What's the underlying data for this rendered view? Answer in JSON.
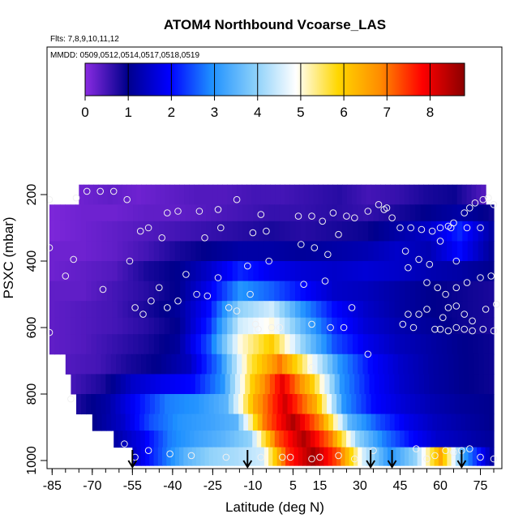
{
  "chart_data": {
    "type": "heatmap",
    "title": "ATOM4 Northbound Vcoarse_LAS",
    "flights_note": "Flts: 7,8,9,10,11,12",
    "dates_note": "MMDD: 0509,0512,0514,0517,0518,0519",
    "xlabel": "Latitude (deg N)",
    "ylabel": "PSXC (mbar)",
    "xlim": [
      -88,
      83
    ],
    "ylim": [
      1020,
      90
    ],
    "x_ticks": [
      -85,
      -70,
      -55,
      -40,
      -25,
      -10,
      5,
      15,
      30,
      45,
      60,
      75
    ],
    "y_ticks": [
      200,
      400,
      600,
      800,
      1000
    ],
    "colorbar": {
      "min": 0,
      "max": 8.8,
      "ticks": [
        0,
        1,
        2,
        3,
        4,
        5,
        6,
        7,
        8
      ],
      "colors": [
        "#8a2be2",
        "#00008b",
        "#0000ff",
        "#1e90ff",
        "#87cefa",
        "#ffffff",
        "#ffd700",
        "#ff8c00",
        "#ff0000",
        "#8b0000"
      ]
    },
    "pressure_bands": [
      {
        "p_top": 170,
        "p_bot": 230,
        "x_start": -75,
        "x_end": 77,
        "values": [
          0.2,
          0.3,
          0.2,
          0.3,
          0.4,
          0.4,
          0.5,
          0.5,
          0.6,
          0.7,
          0.5,
          0.6,
          0.8,
          0.9,
          0.4
        ]
      },
      {
        "p_top": 230,
        "p_bot": 280,
        "x_start": -86,
        "x_end": 80,
        "values": [
          0.1,
          0.2,
          0.2,
          0.3,
          0.3,
          0.4,
          0.5,
          0.6,
          0.6,
          0.7,
          0.6,
          0.8,
          1.0,
          1.2,
          0.9
        ]
      },
      {
        "p_top": 280,
        "p_bot": 340,
        "x_start": -86,
        "x_end": 80,
        "values": [
          0.1,
          0.2,
          0.3,
          0.4,
          0.5,
          0.6,
          0.7,
          0.8,
          0.7,
          0.8,
          0.9,
          1.2,
          1.5,
          2.2,
          1.2
        ]
      },
      {
        "p_top": 340,
        "p_bot": 400,
        "x_start": -86,
        "x_end": 80,
        "values": [
          0.2,
          0.2,
          0.3,
          0.5,
          0.8,
          1.0,
          1.2,
          1.2,
          1.1,
          1.2,
          1.3,
          1.5,
          1.3,
          2.0,
          1.1
        ]
      },
      {
        "p_top": 400,
        "p_bot": 460,
        "x_start": -86,
        "x_end": 80,
        "values": [
          0.2,
          0.3,
          0.4,
          0.8,
          1.0,
          1.5,
          2.2,
          1.8,
          1.6,
          1.5,
          1.6,
          1.5,
          1.3,
          1.2,
          1.0
        ]
      },
      {
        "p_top": 460,
        "p_bot": 520,
        "x_start": -86,
        "x_end": 80,
        "values": [
          0.3,
          0.3,
          0.5,
          0.7,
          1.0,
          1.8,
          3.0,
          2.6,
          2.0,
          1.5,
          1.4,
          1.2,
          1.0,
          0.9,
          0.8
        ]
      },
      {
        "p_top": 520,
        "p_bot": 570,
        "x_start": -86,
        "x_end": 80,
        "values": [
          0.3,
          0.4,
          0.5,
          0.8,
          1.1,
          2.0,
          4.0,
          4.5,
          3.0,
          2.0,
          1.5,
          1.2,
          1.0,
          0.9,
          0.8
        ]
      },
      {
        "p_top": 570,
        "p_bot": 620,
        "x_start": -86,
        "x_end": 80,
        "values": [
          0.3,
          0.4,
          0.5,
          0.7,
          1.0,
          2.2,
          4.5,
          5.0,
          3.5,
          2.2,
          1.6,
          1.3,
          1.1,
          0.9,
          0.8
        ]
      },
      {
        "p_top": 620,
        "p_bot": 680,
        "x_start": -86,
        "x_end": 80,
        "values": [
          0.3,
          0.4,
          0.6,
          0.8,
          1.1,
          2.5,
          5.0,
          6.0,
          4.0,
          2.5,
          1.8,
          1.4,
          1.2,
          1.0,
          0.9
        ]
      },
      {
        "p_top": 680,
        "p_bot": 740,
        "x_start": -80,
        "x_end": 80,
        "values": [
          0.4,
          0.5,
          0.8,
          1.0,
          1.4,
          2.8,
          5.5,
          7.0,
          5.0,
          3.0,
          2.0,
          1.5,
          1.2,
          1.0,
          0.9
        ]
      },
      {
        "p_top": 740,
        "p_bot": 800,
        "x_start": -78,
        "x_end": 80,
        "values": [
          0.5,
          0.8,
          1.5,
          1.8,
          2.0,
          3.0,
          6.0,
          8.0,
          6.0,
          3.0,
          2.0,
          1.5,
          1.2,
          1.0,
          0.9
        ]
      },
      {
        "p_top": 800,
        "p_bot": 860,
        "x_start": -76,
        "x_end": 80,
        "values": [
          0.8,
          1.2,
          2.0,
          2.8,
          3.0,
          3.5,
          6.5,
          8.2,
          6.5,
          3.0,
          2.0,
          1.6,
          1.3,
          1.1,
          1.0
        ]
      },
      {
        "p_top": 860,
        "p_bot": 910,
        "x_start": -70,
        "x_end": 80,
        "values": [
          1.0,
          1.5,
          2.5,
          3.0,
          3.2,
          3.5,
          7.0,
          8.5,
          6.8,
          3.5,
          2.5,
          1.8,
          1.4,
          1.2,
          1.0
        ]
      },
      {
        "p_top": 910,
        "p_bot": 960,
        "x_start": -62,
        "x_end": 80,
        "values": [
          1.2,
          1.8,
          2.8,
          3.2,
          3.5,
          4.0,
          7.2,
          8.5,
          7.0,
          4.0,
          2.8,
          2.0,
          1.5,
          1.3,
          1.1
        ]
      },
      {
        "p_top": 960,
        "p_bot": 1015,
        "x_start": -55,
        "x_end": 80,
        "values": [
          1.5,
          2.5,
          3.5,
          4.0,
          4.2,
          4.5,
          7.5,
          8.6,
          7.2,
          4.5,
          3.0,
          4.0,
          6.5,
          3.0,
          1.2
        ]
      }
    ],
    "sample_points": [
      [
        -86,
        215
      ],
      [
        -76,
        210
      ],
      [
        -72,
        190
      ],
      [
        -67,
        190
      ],
      [
        -62,
        190
      ],
      [
        -57,
        215
      ],
      [
        -42,
        255
      ],
      [
        -38,
        250
      ],
      [
        -30,
        250
      ],
      [
        -23,
        245
      ],
      [
        -16,
        215
      ],
      [
        -86,
        360
      ],
      [
        -80,
        445
      ],
      [
        -77,
        395
      ],
      [
        -66,
        485
      ],
      [
        -56,
        400
      ],
      [
        -54,
        540
      ],
      [
        -51,
        560
      ],
      [
        -48,
        520
      ],
      [
        -45,
        480
      ],
      [
        -42,
        540
      ],
      [
        -38,
        520
      ],
      [
        -35,
        440
      ],
      [
        -31,
        500
      ],
      [
        -27,
        505
      ],
      [
        -23,
        450
      ],
      [
        -19,
        540
      ],
      [
        -12,
        415
      ],
      [
        -9,
        590
      ],
      [
        -8,
        605
      ],
      [
        -3,
        600
      ],
      [
        0,
        600
      ],
      [
        8,
        350
      ],
      [
        13,
        360
      ],
      [
        18,
        380
      ],
      [
        22,
        320
      ],
      [
        28,
        270
      ],
      [
        33,
        250
      ],
      [
        39,
        245
      ],
      [
        42,
        270
      ],
      [
        47,
        370
      ],
      [
        52,
        395
      ],
      [
        56,
        410
      ],
      [
        60,
        340
      ],
      [
        64,
        300
      ],
      [
        66,
        400
      ],
      [
        70,
        300
      ],
      [
        75,
        300
      ],
      [
        -86,
        615
      ],
      [
        -78,
        815
      ],
      [
        -58,
        950
      ],
      [
        -54,
        990
      ],
      [
        -49,
        970
      ],
      [
        -41,
        980
      ],
      [
        -33,
        985
      ],
      [
        -20,
        990
      ],
      [
        -7,
        990
      ],
      [
        4,
        990
      ],
      [
        12,
        995
      ],
      [
        28,
        995
      ],
      [
        35,
        970
      ],
      [
        46,
        590
      ],
      [
        48,
        560
      ],
      [
        50,
        600
      ],
      [
        52,
        560
      ],
      [
        55,
        545
      ],
      [
        58,
        605
      ],
      [
        61,
        570
      ],
      [
        63,
        540
      ],
      [
        66,
        535
      ],
      [
        69,
        560
      ],
      [
        72,
        580
      ],
      [
        77,
        545
      ],
      [
        81,
        530
      ],
      [
        -5,
        310
      ],
      [
        -10,
        315
      ],
      [
        -7,
        260
      ],
      [
        7,
        265
      ],
      [
        12,
        265
      ],
      [
        16,
        280
      ],
      [
        20,
        255
      ],
      [
        25,
        265
      ],
      [
        37,
        230
      ],
      [
        40,
        240
      ],
      [
        45,
        300
      ],
      [
        49,
        300
      ],
      [
        53,
        305
      ],
      [
        57,
        310
      ],
      [
        60,
        300
      ],
      [
        63,
        295
      ],
      [
        65,
        285
      ],
      [
        69,
        255
      ],
      [
        71,
        240
      ],
      [
        73,
        225
      ],
      [
        76,
        215
      ],
      [
        78,
        210
      ],
      [
        80,
        230
      ],
      [
        -52,
        310
      ],
      [
        -49,
        300
      ],
      [
        -44,
        330
      ],
      [
        -28,
        330
      ],
      [
        -22,
        300
      ],
      [
        -4,
        400
      ],
      [
        9,
        470
      ],
      [
        17,
        460
      ],
      [
        27,
        540
      ],
      [
        33,
        680
      ],
      [
        48,
        420
      ],
      [
        55,
        465
      ],
      [
        59,
        480
      ],
      [
        62,
        500
      ],
      [
        66,
        480
      ],
      [
        70,
        465
      ],
      [
        75,
        450
      ],
      [
        79,
        445
      ],
      [
        -11,
        500
      ],
      [
        -16,
        550
      ],
      [
        12,
        590
      ],
      [
        19,
        600
      ],
      [
        24,
        600
      ],
      [
        60,
        605
      ],
      [
        63,
        610
      ],
      [
        66,
        600
      ],
      [
        69,
        605
      ],
      [
        72,
        610
      ],
      [
        76,
        605
      ],
      [
        80,
        610
      ],
      [
        12,
        720
      ],
      [
        1,
        990
      ],
      [
        15,
        990
      ],
      [
        22,
        985
      ],
      [
        51,
        965
      ],
      [
        55,
        995
      ],
      [
        58,
        985
      ],
      [
        62,
        970
      ],
      [
        65,
        975
      ],
      [
        68,
        970
      ],
      [
        71,
        965
      ],
      [
        75,
        990
      ],
      [
        80,
        995
      ]
    ],
    "arrow_latitudes": [
      -55,
      -12,
      34,
      42,
      68
    ]
  }
}
